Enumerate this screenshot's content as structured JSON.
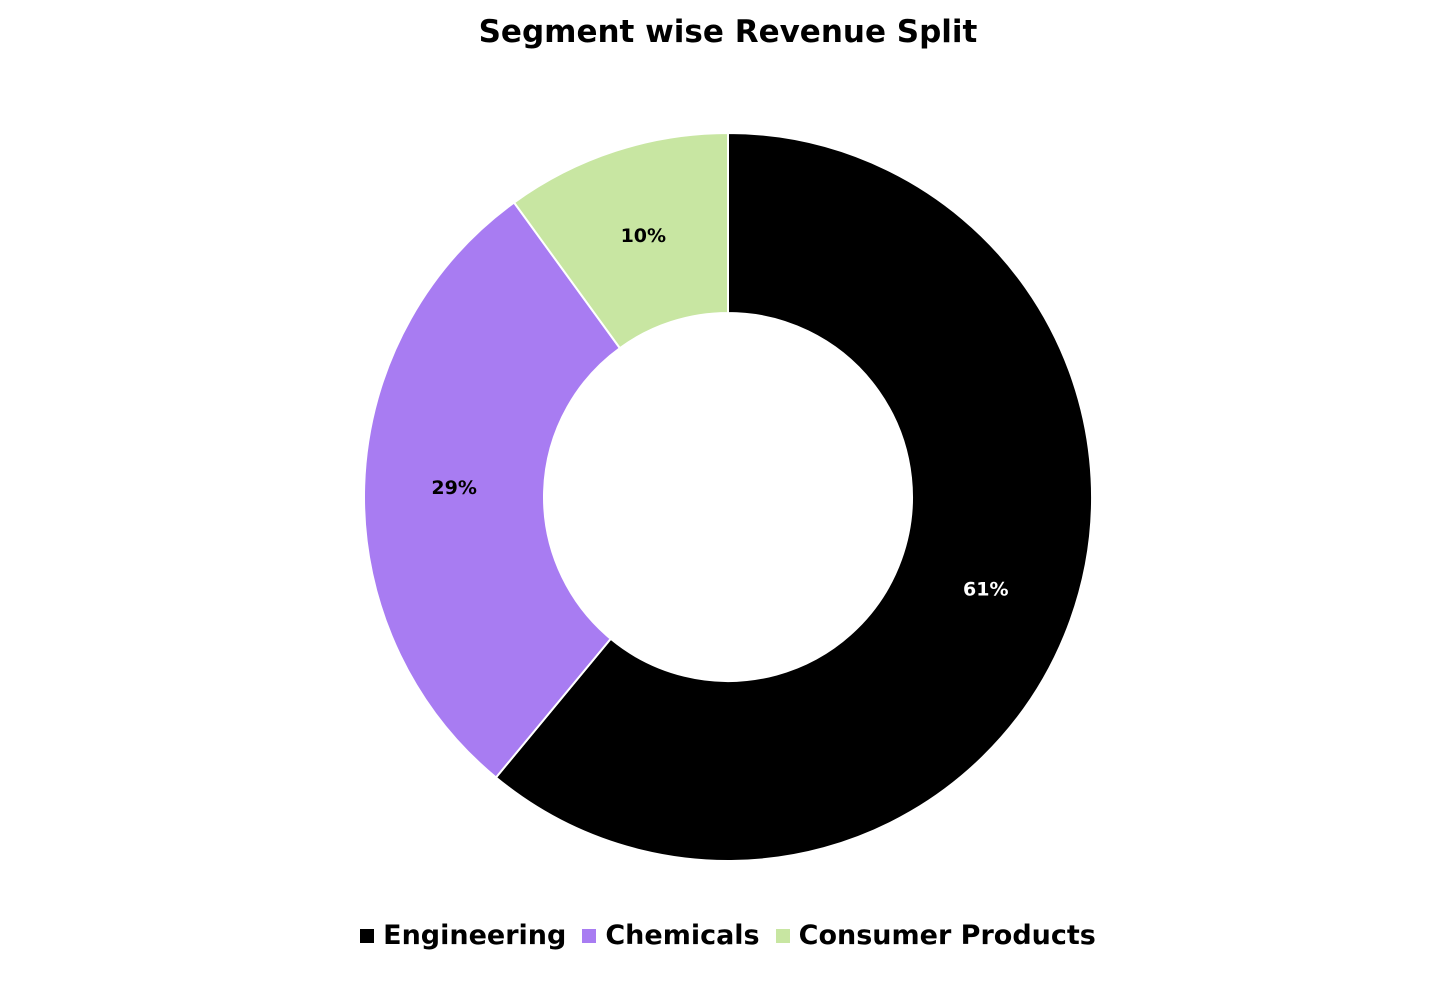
{
  "chart_data": {
    "type": "pie",
    "title": "Segment wise Revenue Split",
    "donut": true,
    "categories": [
      "Engineering",
      "Chemicals",
      "Consumer Products"
    ],
    "values": [
      61,
      29,
      10
    ],
    "value_labels": [
      "61%",
      "29%",
      "10%"
    ],
    "colors": [
      "#000000",
      "#a87cf2",
      "#c8e6a2"
    ],
    "label_colors": [
      "#ffffff",
      "#000000",
      "#000000"
    ],
    "start_angle_deg": 0,
    "direction": "clockwise",
    "legend_position": "bottom"
  }
}
